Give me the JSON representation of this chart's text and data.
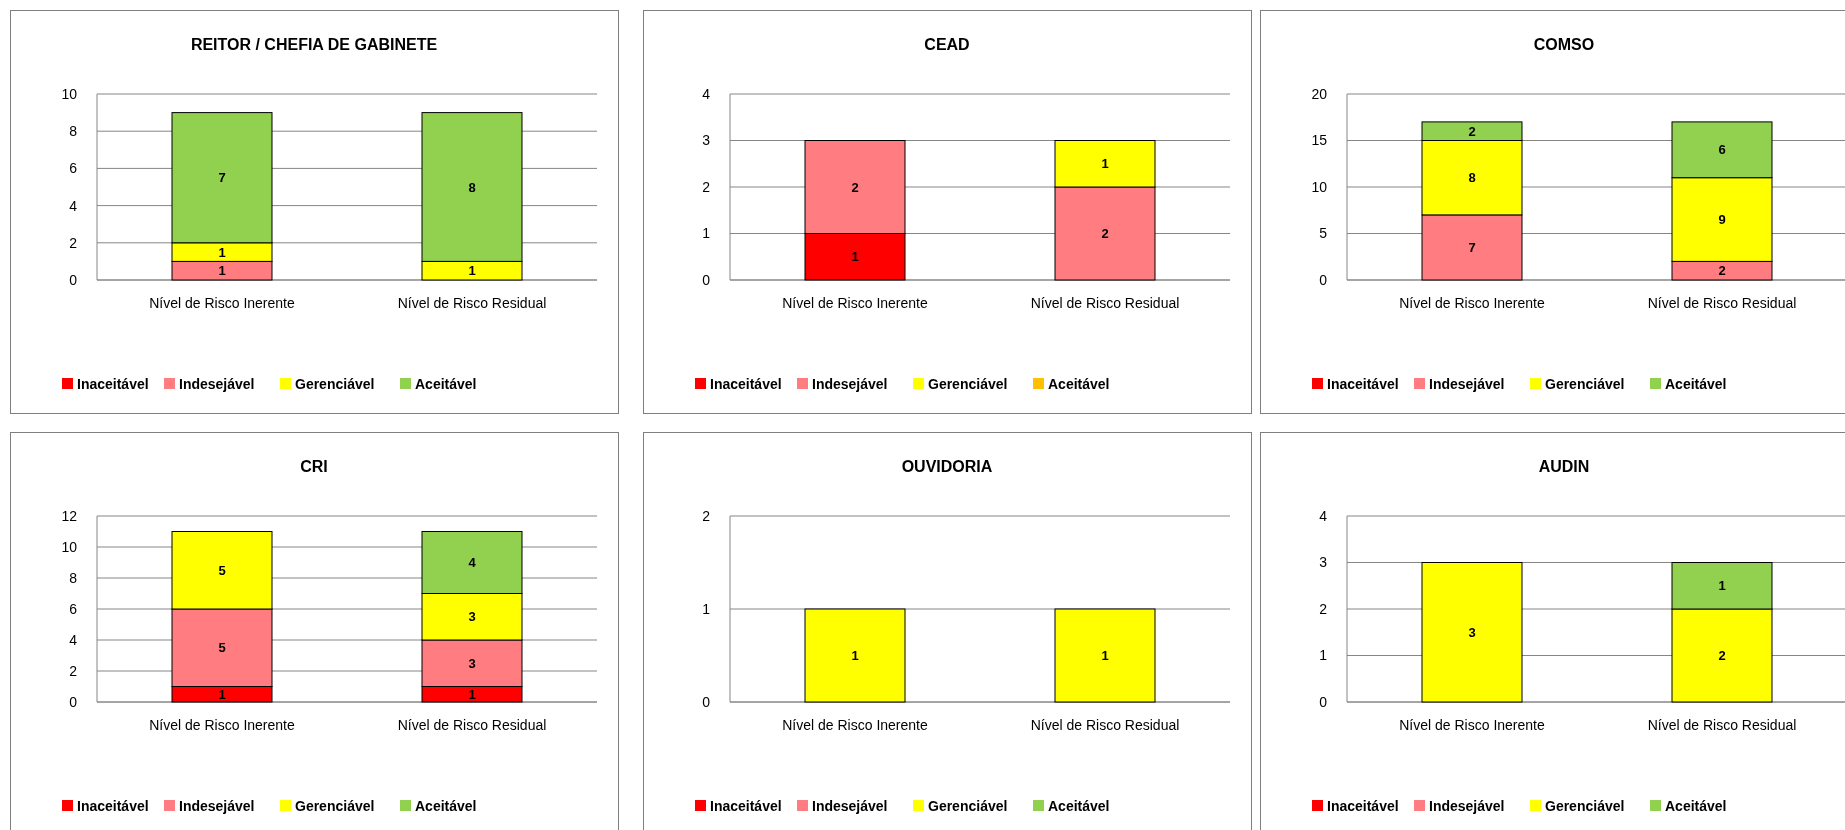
{
  "chart_data": [
    {
      "type": "bar",
      "title": "REITOR / CHEFIA DE GABINETE",
      "categories": [
        "Nível de Risco Inerente",
        "Nível de Risco Residual"
      ],
      "stacked": true,
      "grid": "y",
      "legend": "bottom",
      "ylim": [
        0,
        10
      ],
      "yticks": [
        0,
        2,
        4,
        6,
        8,
        10
      ],
      "series": [
        {
          "name": "Inaceitável",
          "color": "#ff0000",
          "values": [
            null,
            null
          ]
        },
        {
          "name": "Indesejável",
          "color": "#ff7c80",
          "values": [
            1,
            null
          ],
          "value_labels": [
            "1",
            null
          ]
        },
        {
          "name": "Gerenciável",
          "color": "#ffff00",
          "values": [
            1,
            1
          ],
          "value_labels": [
            "1",
            "1"
          ]
        },
        {
          "name": "Aceitável",
          "color": "#92d050",
          "values": [
            7,
            8
          ],
          "value_labels": [
            "7",
            "8"
          ]
        }
      ]
    },
    {
      "type": "bar",
      "title": "CEAD",
      "categories": [
        "Nível de Risco Inerente",
        "Nível de Risco Residual"
      ],
      "stacked": true,
      "grid": "y",
      "legend": "bottom",
      "ylim": [
        0,
        4
      ],
      "yticks": [
        0,
        1,
        2,
        3,
        4
      ],
      "series": [
        {
          "name": "Inaceitável",
          "color": "#ff0000",
          "values": [
            1,
            null
          ],
          "value_labels": [
            "1",
            null
          ]
        },
        {
          "name": "Indesejável",
          "color": "#ff7c80",
          "values": [
            2,
            2
          ],
          "value_labels": [
            "2",
            "2"
          ]
        },
        {
          "name": "Gerenciável",
          "color": "#ffff00",
          "values": [
            null,
            1
          ],
          "value_labels": [
            null,
            "1"
          ]
        },
        {
          "name": "Aceitável",
          "color": "#ffc000",
          "values": [
            null,
            null
          ]
        }
      ]
    },
    {
      "type": "bar",
      "title": "COMSO",
      "categories": [
        "Nível de Risco Inerente",
        "Nível de Risco Residual"
      ],
      "stacked": true,
      "grid": "y",
      "legend": "bottom",
      "ylim": [
        0,
        20
      ],
      "yticks": [
        0,
        5,
        10,
        15,
        20
      ],
      "series": [
        {
          "name": "Inaceitável",
          "color": "#ff0000",
          "values": [
            null,
            null
          ]
        },
        {
          "name": "Indesejável",
          "color": "#ff7c80",
          "values": [
            7,
            2
          ],
          "value_labels": [
            "7",
            "2"
          ]
        },
        {
          "name": "Gerenciável",
          "color": "#ffff00",
          "values": [
            8,
            9
          ],
          "value_labels": [
            "8",
            "9"
          ]
        },
        {
          "name": "Aceitável",
          "color": "#92d050",
          "values": [
            2,
            6
          ],
          "value_labels": [
            "2",
            "6"
          ]
        }
      ]
    },
    {
      "type": "bar",
      "title": "CRI",
      "categories": [
        "Nível de Risco Inerente",
        "Nível de Risco Residual"
      ],
      "stacked": true,
      "grid": "y",
      "legend": "bottom",
      "ylim": [
        0,
        12
      ],
      "yticks": [
        0,
        2,
        4,
        6,
        8,
        10,
        12
      ],
      "series": [
        {
          "name": "Inaceitável",
          "color": "#ff0000",
          "values": [
            1,
            1
          ],
          "value_labels": [
            "1",
            "1"
          ]
        },
        {
          "name": "Indesejável",
          "color": "#ff7c80",
          "values": [
            5,
            3
          ],
          "value_labels": [
            "5",
            "3"
          ]
        },
        {
          "name": "Gerenciável",
          "color": "#ffff00",
          "values": [
            5,
            3
          ],
          "value_labels": [
            "5",
            "3"
          ]
        },
        {
          "name": "Aceitável",
          "color": "#92d050",
          "values": [
            null,
            4
          ],
          "value_labels": [
            null,
            "4"
          ]
        }
      ]
    },
    {
      "type": "bar",
      "title": "OUVIDORIA",
      "categories": [
        "Nível de Risco Inerente",
        "Nível de Risco Residual"
      ],
      "stacked": true,
      "grid": "y",
      "legend": "bottom",
      "ylim": [
        0,
        2
      ],
      "yticks": [
        0,
        1,
        2
      ],
      "series": [
        {
          "name": "Inaceitável",
          "color": "#ff0000",
          "values": [
            null,
            null
          ]
        },
        {
          "name": "Indesejável",
          "color": "#ff7c80",
          "values": [
            null,
            null
          ]
        },
        {
          "name": "Gerenciável",
          "color": "#ffff00",
          "values": [
            1,
            1
          ],
          "value_labels": [
            "1",
            "1"
          ]
        },
        {
          "name": "Aceitável",
          "color": "#92d050",
          "values": [
            null,
            null
          ]
        }
      ]
    },
    {
      "type": "bar",
      "title": "AUDIN",
      "categories": [
        "Nível de Risco Inerente",
        "Nível de Risco Residual"
      ],
      "stacked": true,
      "grid": "y",
      "legend": "bottom",
      "ylim": [
        0,
        4
      ],
      "yticks": [
        0,
        1,
        2,
        3,
        4
      ],
      "series": [
        {
          "name": "Inaceitável",
          "color": "#ff0000",
          "values": [
            null,
            null
          ]
        },
        {
          "name": "Indesejável",
          "color": "#ff7c80",
          "values": [
            null,
            null
          ]
        },
        {
          "name": "Gerenciável",
          "color": "#ffff00",
          "values": [
            3,
            2
          ],
          "value_labels": [
            "3",
            "2"
          ]
        },
        {
          "name": "Aceitável",
          "color": "#92d050",
          "values": [
            null,
            1
          ],
          "value_labels": [
            null,
            "1"
          ]
        }
      ]
    }
  ]
}
